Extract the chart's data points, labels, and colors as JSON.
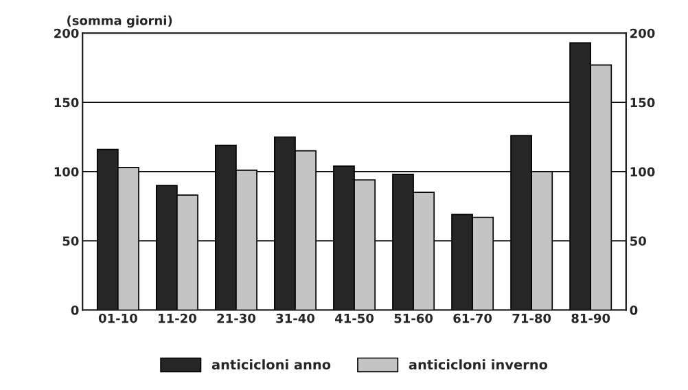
{
  "chart_data": {
    "type": "bar",
    "ylabel": "(somma giorni)",
    "categories": [
      "01-10",
      "11-20",
      "21-30",
      "31-40",
      "41-50",
      "51-60",
      "61-70",
      "71-80",
      "81-90"
    ],
    "series": [
      {
        "name": "anticicloni anno",
        "color": "#262626",
        "values": [
          116,
          90,
          119,
          125,
          104,
          98,
          69,
          126,
          193
        ]
      },
      {
        "name": "anticicloni inverno",
        "color": "#c4c4c4",
        "values": [
          103,
          83,
          101,
          115,
          94,
          85,
          67,
          100,
          177
        ]
      }
    ],
    "ylim": [
      0,
      200
    ],
    "yticks": [
      0,
      50,
      100,
      150,
      200
    ],
    "y2lim": [
      0,
      200
    ],
    "y2ticks": [
      0,
      50,
      100,
      150,
      200
    ],
    "grid": "y",
    "legend": "bottom"
  }
}
